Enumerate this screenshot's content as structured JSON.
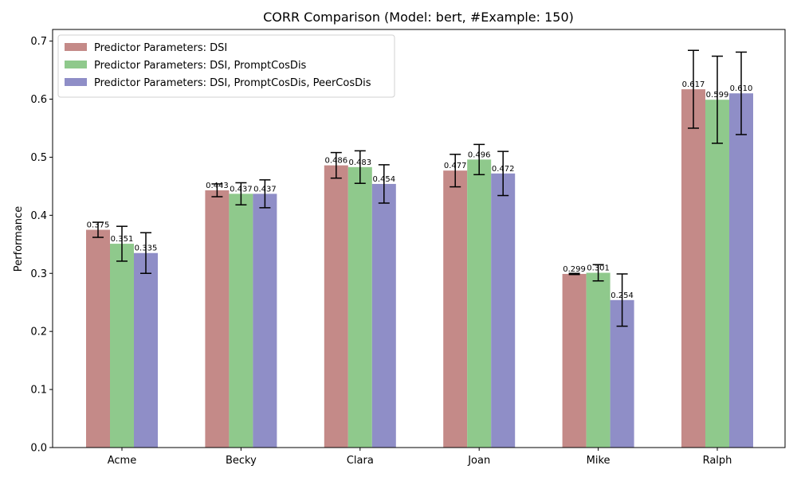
{
  "chart_data": {
    "type": "bar",
    "title": "CORR Comparison (Model: bert, #Example: 150)",
    "xlabel": "",
    "ylabel": "Performance",
    "ylim": [
      0,
      0.72
    ],
    "yticks": [
      0.0,
      0.1,
      0.2,
      0.3,
      0.4,
      0.5,
      0.6,
      0.7
    ],
    "ytick_labels": [
      "0.0",
      "0.1",
      "0.2",
      "0.3",
      "0.4",
      "0.5",
      "0.6",
      "0.7"
    ],
    "grid": false,
    "legend_position": "top-left",
    "categories": [
      "Acme",
      "Becky",
      "Clara",
      "Joan",
      "Mike",
      "Ralph"
    ],
    "series": [
      {
        "name": "Predictor Parameters: DSI",
        "color": "#c48a88",
        "values": [
          0.375,
          0.443,
          0.486,
          0.477,
          0.299,
          0.617
        ],
        "value_labels": [
          "0.375",
          "0.443",
          "0.486",
          "0.477",
          "0.299",
          "0.617"
        ],
        "error": [
          0.013,
          0.011,
          0.022,
          0.028,
          0.001,
          0.067
        ]
      },
      {
        "name": "Predictor Parameters: DSI, PromptCosDis",
        "color": "#8fc98c",
        "values": [
          0.351,
          0.437,
          0.483,
          0.496,
          0.301,
          0.599
        ],
        "value_labels": [
          "0.351",
          "0.437",
          "0.483",
          "0.496",
          "0.301",
          "0.599"
        ],
        "error": [
          0.03,
          0.019,
          0.028,
          0.026,
          0.014,
          0.075
        ]
      },
      {
        "name": "Predictor Parameters: DSI, PromptCosDis, PeerCosDis",
        "color": "#8f8ec7",
        "values": [
          0.335,
          0.437,
          0.454,
          0.472,
          0.254,
          0.61
        ],
        "value_labels": [
          "0.335",
          "0.437",
          "0.454",
          "0.472",
          "0.254",
          "0.610"
        ],
        "error": [
          0.035,
          0.024,
          0.033,
          0.038,
          0.045,
          0.071
        ]
      }
    ]
  }
}
